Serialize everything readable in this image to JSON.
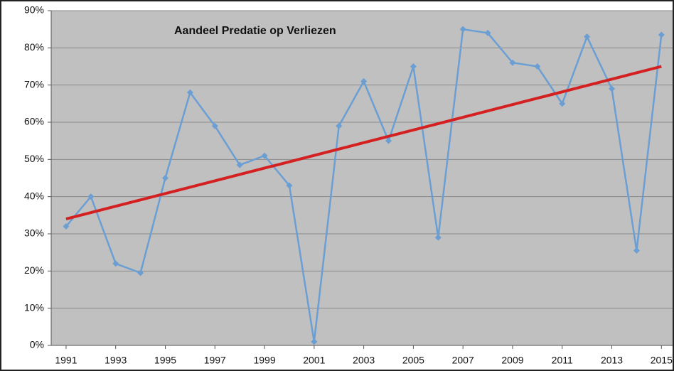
{
  "chart_data": {
    "type": "line",
    "title": "Aandeel Predatie op Verliezen",
    "x": [
      1991,
      1992,
      1993,
      1994,
      1995,
      1996,
      1997,
      1998,
      1999,
      2000,
      2001,
      2002,
      2003,
      2004,
      2005,
      2006,
      2007,
      2008,
      2009,
      2010,
      2011,
      2012,
      2013,
      2014,
      2015
    ],
    "values": [
      32,
      40,
      22,
      19.5,
      45,
      68,
      59,
      48.5,
      51,
      43,
      1,
      59,
      71,
      55,
      75,
      29,
      85,
      84,
      76,
      75,
      65,
      83,
      69,
      25.5,
      83.5
    ],
    "color": "#6b9fd4",
    "trend": {
      "x": [
        1991,
        2015
      ],
      "values": [
        34,
        75
      ],
      "color": "#d42020"
    },
    "xlim": [
      1990.4,
      2015.45
    ],
    "xticks": [
      1991,
      1993,
      1995,
      1997,
      1999,
      2001,
      2003,
      2005,
      2007,
      2009,
      2011,
      2013,
      2015
    ],
    "ylim": [
      0,
      90
    ],
    "yticks": [
      {
        "value": 0,
        "label": "0%"
      },
      {
        "value": 10,
        "label": "10%"
      },
      {
        "value": 20,
        "label": "20%"
      },
      {
        "value": 30,
        "label": "30%"
      },
      {
        "value": 40,
        "label": "40%"
      },
      {
        "value": 50,
        "label": "50%"
      },
      {
        "value": 60,
        "label": "60%"
      },
      {
        "value": 70,
        "label": "70%"
      },
      {
        "value": 80,
        "label": "80%"
      },
      {
        "value": 90,
        "label": "90%"
      }
    ],
    "grid": true
  }
}
